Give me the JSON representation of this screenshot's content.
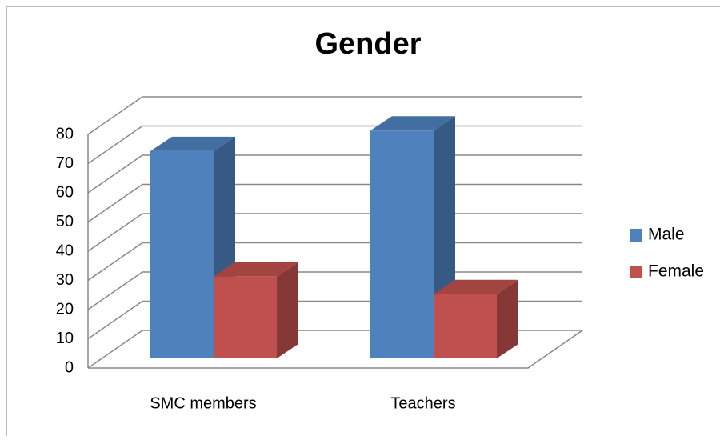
{
  "chart_data": {
    "type": "bar3d",
    "title": "Gender",
    "categories": [
      "SMC members",
      "Teachers"
    ],
    "series": [
      {
        "name": "Male",
        "color": "#4f81bd",
        "values": [
          71,
          78
        ]
      },
      {
        "name": "Female",
        "color": "#c0504d",
        "values": [
          28,
          22
        ]
      }
    ],
    "ylim": [
      0,
      80
    ],
    "yticks": [
      0,
      10,
      20,
      30,
      40,
      50,
      60,
      70,
      80
    ],
    "grid": true,
    "legend": "right"
  }
}
